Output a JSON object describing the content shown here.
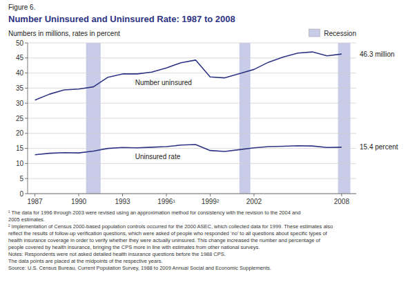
{
  "chart_data": {
    "type": "line",
    "figure_label": "Figure 6.",
    "title": "Number Uninsured and Uninsured Rate: 1987 to 2008",
    "y_label": "Numbers in millions, rates in percent",
    "x": [
      1987,
      1988,
      1989,
      1990,
      1991,
      1992,
      1993,
      1994,
      1995,
      1996,
      1997,
      1998,
      1999,
      2000,
      2001,
      2002,
      2003,
      2004,
      2005,
      2006,
      2007,
      2008
    ],
    "series": [
      {
        "name": "Number uninsured",
        "color": "#2e3484",
        "values": [
          31.0,
          33.0,
          34.4,
          34.7,
          35.4,
          38.6,
          39.7,
          39.7,
          40.3,
          41.7,
          43.4,
          44.3,
          38.7,
          38.4,
          39.8,
          41.2,
          43.6,
          45.3,
          46.6,
          47.0,
          45.7,
          46.3
        ]
      },
      {
        "name": "Uninsured rate",
        "color": "#2e3484",
        "values": [
          12.9,
          13.4,
          13.6,
          13.5,
          14.1,
          15.0,
          15.3,
          15.2,
          15.4,
          15.6,
          16.1,
          16.3,
          14.3,
          14.0,
          14.6,
          15.2,
          15.6,
          15.7,
          15.9,
          15.8,
          15.3,
          15.4
        ]
      }
    ],
    "recessions": {
      "name": "Recession",
      "color": "#c8cce8",
      "ranges": [
        [
          1990.5,
          1991.5
        ],
        [
          2001.0,
          2001.75
        ],
        [
          2007.75,
          2008.6
        ]
      ]
    },
    "xlim": [
      1986.5,
      2009.0
    ],
    "xticks": [
      1987,
      1990,
      1993,
      {
        "value": 1996,
        "label": "1996¹"
      },
      {
        "value": 1999,
        "label": "1999²"
      },
      2002,
      2008
    ],
    "ylim": [
      0,
      50
    ],
    "yticks": [
      0,
      5,
      10,
      15,
      20,
      25,
      30,
      35,
      40,
      45,
      50
    ],
    "grid": true,
    "annotations": [
      {
        "text": "46.3 million",
        "y": 46.3
      },
      {
        "text": "15.4 percent",
        "y": 15.4
      }
    ],
    "footnotes": [
      "¹ The data for 1996 through 2003 were revised using an approximation method for consistency with the revision to the 2004 and",
      "2005 estimates.",
      "² Implementation of Census 2000-based population controls occurred for the 2000 ASEC, which collected data for 1999.  These estimates also",
      "reflect the results of follow-up verification questions, which were asked of people who responded ‘no’ to all questions about specific types of",
      "health insurance coverage in order to verify whether they were actually uninsured.  This change increased the number and percentage of",
      "people covered by health insurance, bringing the CPS more in line with estimates from other national surveys.",
      "Notes: Respondents were not asked detailed health insurance questions before the 1988 CPS.",
      "The data points are placed at the midpoints of the respective years.",
      "Source: U.S. Census Bureau, Current Population Survey, 1988 to 2009 Annual Social and Economic Supplements."
    ]
  }
}
